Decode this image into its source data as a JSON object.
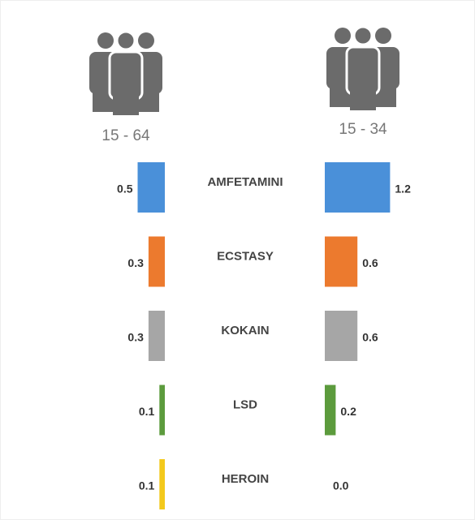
{
  "chart_data": {
    "type": "butterfly",
    "categories": [
      "AMFETAMINI",
      "ECSTASY",
      "KOKAIN",
      "LSD",
      "HEROIN"
    ],
    "colors": [
      "#4a90d9",
      "#ec7a2e",
      "#a6a6a6",
      "#5c9b3d",
      "#f3c91c"
    ],
    "series": [
      {
        "name": "15 - 64",
        "values": [
          0.5,
          0.3,
          0.3,
          0.1,
          0.1
        ],
        "value_labels": [
          "0.5",
          "0.3",
          "0.3",
          "0.1",
          "0.1"
        ]
      },
      {
        "name": "15 - 34",
        "values": [
          1.2,
          0.6,
          0.6,
          0.2,
          0.0
        ],
        "value_labels": [
          "1.2",
          "0.6",
          "0.6",
          "0.2",
          "0.0"
        ]
      }
    ]
  }
}
